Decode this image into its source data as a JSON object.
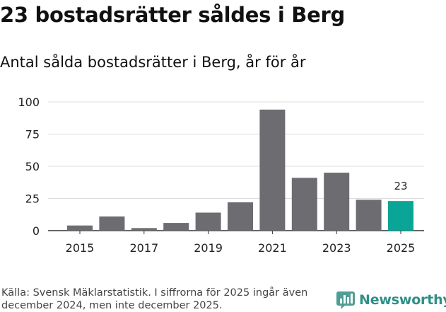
{
  "title": "23 bostadsrätter såldes i Berg",
  "subtitle": "Antal sålda bostadsrätter i Berg, år för år",
  "footer": {
    "source": "Källa: Svensk Mäklarstatistik. I siffrorna för 2025 ingår även december 2024, men inte december 2025."
  },
  "brand": {
    "name": "Newsworthy",
    "icon": "newsworthy-logo-icon"
  },
  "colors": {
    "bar": "#6d6c71",
    "highlight": "#0aa597",
    "grid": "#dddddd",
    "axis": "#333333",
    "brand": "#2e8f86"
  },
  "chart_data": {
    "type": "bar",
    "title": "23 bostadsrätter såldes i Berg",
    "subtitle": "Antal sålda bostadsrätter i Berg, år för år",
    "xlabel": "",
    "ylabel": "",
    "categories": [
      "2015",
      "2016",
      "2017",
      "2018",
      "2019",
      "2020",
      "2021",
      "2022",
      "2023",
      "2024",
      "2025"
    ],
    "values": [
      4,
      11,
      2,
      6,
      14,
      22,
      94,
      41,
      45,
      24,
      23
    ],
    "x_tick_labels": [
      "2015",
      "2017",
      "2019",
      "2021",
      "2023",
      "2025"
    ],
    "y_ticks": [
      0,
      25,
      50,
      75,
      100
    ],
    "ylim": [
      0,
      100
    ],
    "grid": true,
    "highlight_category": "2025",
    "data_labels": [
      {
        "category": "2025",
        "text": "23"
      }
    ]
  }
}
